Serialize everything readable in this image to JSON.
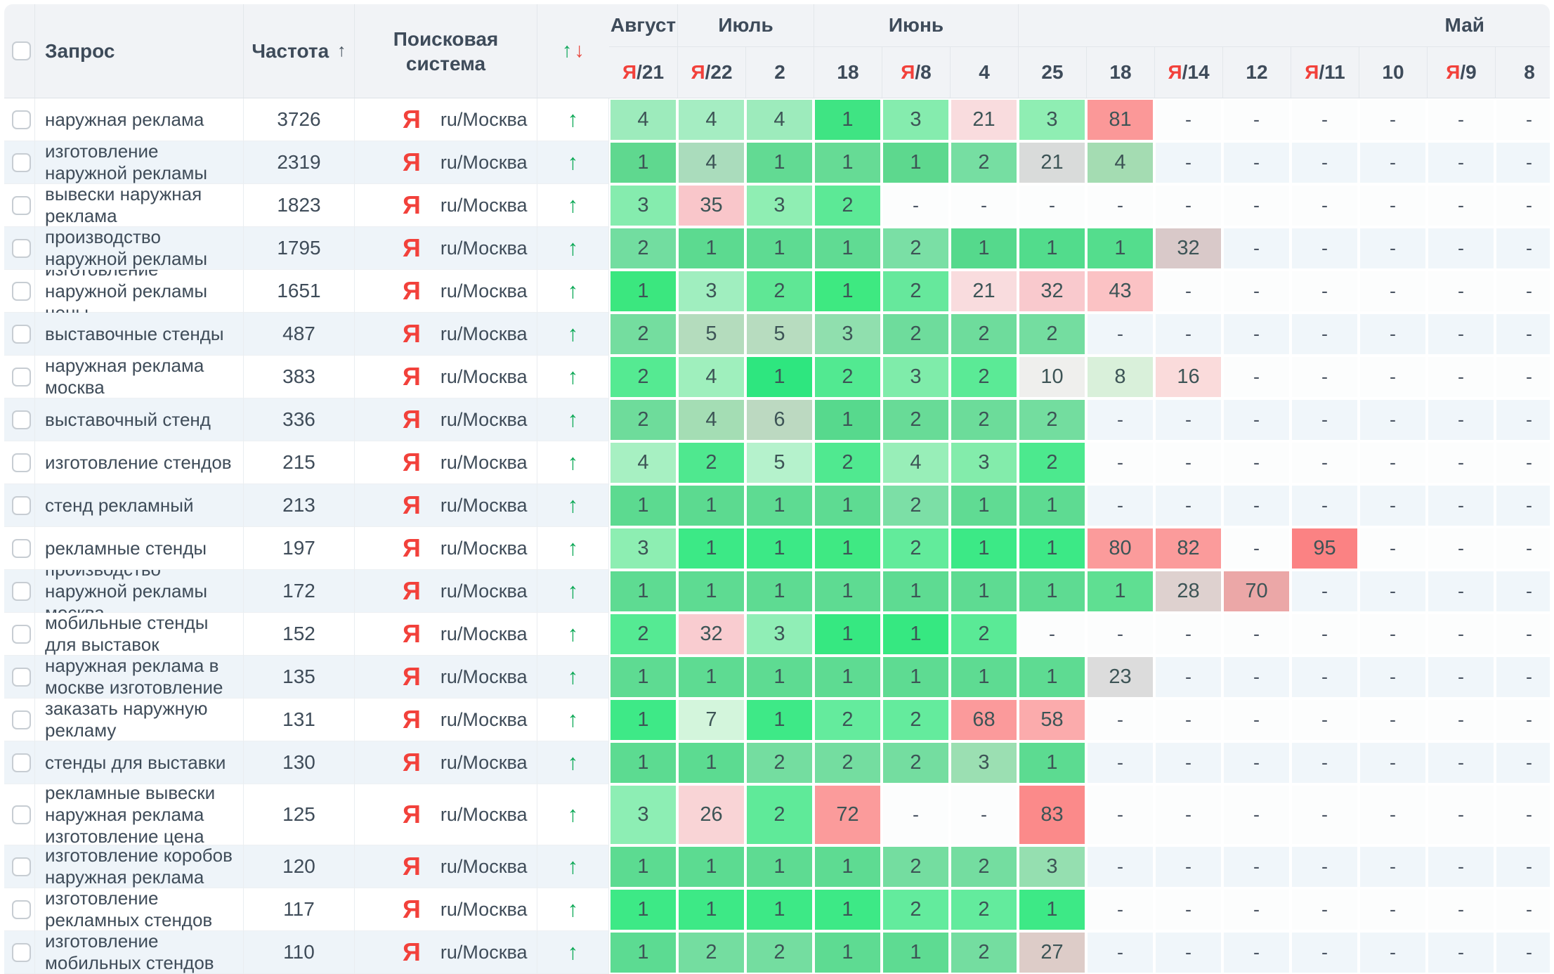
{
  "header": {
    "columns": {
      "query": "Запрос",
      "frequency": "Частота",
      "frequency_sort_icon": "↑",
      "engine_line1": "Поисковая",
      "engine_line2": "система",
      "trend_up_icon": "↑",
      "trend_down_icon": "↓"
    },
    "month_groups": [
      {
        "label": "Август",
        "span": 1
      },
      {
        "label": "Июль",
        "span": 2
      },
      {
        "label": "Июнь",
        "span": 3
      },
      {
        "label": "Май",
        "span": 8
      }
    ],
    "dates": [
      {
        "yandex": true,
        "day": "21"
      },
      {
        "yandex": true,
        "day": "22"
      },
      {
        "yandex": false,
        "day": "2"
      },
      {
        "yandex": false,
        "day": "18"
      },
      {
        "yandex": true,
        "day": "8"
      },
      {
        "yandex": false,
        "day": "4"
      },
      {
        "yandex": false,
        "day": "25"
      },
      {
        "yandex": false,
        "day": "18"
      },
      {
        "yandex": true,
        "day": "14"
      },
      {
        "yandex": false,
        "day": "12"
      },
      {
        "yandex": true,
        "day": "11"
      },
      {
        "yandex": false,
        "day": "10"
      },
      {
        "yandex": true,
        "day": "9"
      },
      {
        "yandex": false,
        "day": "8"
      }
    ]
  },
  "engine": {
    "icon": "Я",
    "label": "ru/Москва"
  },
  "trend_arrow": "↑",
  "dash": "-",
  "colors": {
    "accent_red": "#f2413b",
    "green_arrow": "#0ea957",
    "header_text": "#3e4b5a",
    "cell_text": "#3d5456",
    "stripe_row": "#eef4f9",
    "header_bg": "#f1f3f6"
  },
  "rows": [
    {
      "query": "наружная реклама",
      "frequency": "3726",
      "cells": [
        [
          "4",
          "#9debbc"
        ],
        [
          "4",
          "#a5edc2"
        ],
        [
          "4",
          "#9debbc"
        ],
        [
          "1",
          "#3fe483"
        ],
        [
          "3",
          "#85ecae"
        ],
        [
          "21",
          "#f9dcde"
        ],
        [
          "3",
          "#8feeb3"
        ],
        [
          "81",
          "#fb9898"
        ],
        [
          "-",
          ""
        ],
        [
          "-",
          ""
        ],
        [
          "-",
          ""
        ],
        [
          "-",
          ""
        ],
        [
          "-",
          ""
        ],
        [
          "-",
          ""
        ]
      ]
    },
    {
      "query": "изготовление наружной рекламы",
      "frequency": "2319",
      "cells": [
        [
          "1",
          "#5fd88f"
        ],
        [
          "4",
          "#aadcbc"
        ],
        [
          "1",
          "#62da93"
        ],
        [
          "1",
          "#66db95"
        ],
        [
          "1",
          "#5dd88e"
        ],
        [
          "2",
          "#76dea2"
        ],
        [
          "21",
          "#d9dbda"
        ],
        [
          "4",
          "#a4dcb2"
        ],
        [
          "-",
          ""
        ],
        [
          "-",
          ""
        ],
        [
          "-",
          ""
        ],
        [
          "-",
          ""
        ],
        [
          "-",
          ""
        ],
        [
          "-",
          ""
        ]
      ]
    },
    {
      "query": "вывески наружная реклама",
      "frequency": "1823",
      "cells": [
        [
          "3",
          "#85ecae"
        ],
        [
          "35",
          "#f9c6ca"
        ],
        [
          "3",
          "#8feeb3"
        ],
        [
          "2",
          "#5ce996"
        ],
        [
          "-",
          ""
        ],
        [
          "-",
          ""
        ],
        [
          "-",
          ""
        ],
        [
          "-",
          ""
        ],
        [
          "-",
          ""
        ],
        [
          "-",
          ""
        ],
        [
          "-",
          ""
        ],
        [
          "-",
          ""
        ],
        [
          "-",
          ""
        ],
        [
          "-",
          ""
        ]
      ]
    },
    {
      "query": "производство наружной рекламы",
      "frequency": "1795",
      "cells": [
        [
          "2",
          "#72dda0"
        ],
        [
          "1",
          "#5cda90"
        ],
        [
          "1",
          "#5edb92"
        ],
        [
          "1",
          "#60db93"
        ],
        [
          "2",
          "#7adfa5"
        ],
        [
          "1",
          "#55d98c"
        ],
        [
          "1",
          "#52dc8c"
        ],
        [
          "1",
          "#54dd8d"
        ],
        [
          "32",
          "#d9c9c9"
        ],
        [
          "-",
          ""
        ],
        [
          "-",
          ""
        ],
        [
          "-",
          ""
        ],
        [
          "-",
          ""
        ],
        [
          "-",
          ""
        ]
      ]
    },
    {
      "query": "изготовление наружной рекламы цены",
      "frequency": "1651",
      "cells": [
        [
          "1",
          "#3be77f"
        ],
        [
          "3",
          "#a0eebf"
        ],
        [
          "2",
          "#5fe795"
        ],
        [
          "1",
          "#3ee981"
        ],
        [
          "2",
          "#66e89c"
        ],
        [
          "21",
          "#f9dcde"
        ],
        [
          "32",
          "#f9c9cd"
        ],
        [
          "43",
          "#fbc2c4"
        ],
        [
          "-",
          ""
        ],
        [
          "-",
          ""
        ],
        [
          "-",
          ""
        ],
        [
          "-",
          ""
        ],
        [
          "-",
          ""
        ],
        [
          "-",
          ""
        ]
      ]
    },
    {
      "query": "выставочные стенды",
      "frequency": "487",
      "cells": [
        [
          "2",
          "#74dd9f"
        ],
        [
          "5",
          "#b4dcbd"
        ],
        [
          "5",
          "#b7dcbf"
        ],
        [
          "3",
          "#90dfae"
        ],
        [
          "2",
          "#6edc9c"
        ],
        [
          "2",
          "#6edc9c"
        ],
        [
          "2",
          "#74dda0"
        ],
        [
          "-",
          ""
        ],
        [
          "-",
          ""
        ],
        [
          "-",
          ""
        ],
        [
          "-",
          ""
        ],
        [
          "-",
          ""
        ],
        [
          "-",
          ""
        ],
        [
          "-",
          ""
        ]
      ]
    },
    {
      "query": "наружная реклама москва",
      "frequency": "383",
      "cells": [
        [
          "2",
          "#55ea92"
        ],
        [
          "4",
          "#9fefbd"
        ],
        [
          "1",
          "#2ee67f"
        ],
        [
          "2",
          "#52e991"
        ],
        [
          "3",
          "#7fecaa"
        ],
        [
          "2",
          "#5bea96"
        ],
        [
          "10",
          "#efefed"
        ],
        [
          "8",
          "#d9f0da"
        ],
        [
          "16",
          "#fadbdb"
        ],
        [
          "-",
          ""
        ],
        [
          "-",
          ""
        ],
        [
          "-",
          ""
        ],
        [
          "-",
          ""
        ],
        [
          "-",
          ""
        ]
      ]
    },
    {
      "query": "выставочный стенд",
      "frequency": "336",
      "cells": [
        [
          "2",
          "#6edc9b"
        ],
        [
          "4",
          "#a4ddb4"
        ],
        [
          "6",
          "#bcd9c1"
        ],
        [
          "1",
          "#57d98d"
        ],
        [
          "2",
          "#68db97"
        ],
        [
          "2",
          "#6cdc9a"
        ],
        [
          "2",
          "#73dd9f"
        ],
        [
          "-",
          ""
        ],
        [
          "-",
          ""
        ],
        [
          "-",
          ""
        ],
        [
          "-",
          ""
        ],
        [
          "-",
          ""
        ],
        [
          "-",
          ""
        ],
        [
          "-",
          ""
        ]
      ]
    },
    {
      "query": "изготовление стендов",
      "frequency": "215",
      "cells": [
        [
          "4",
          "#a7f0c2"
        ],
        [
          "2",
          "#4fe88f"
        ],
        [
          "5",
          "#b5f2cc"
        ],
        [
          "2",
          "#50e990"
        ],
        [
          "4",
          "#98eeb8"
        ],
        [
          "3",
          "#83ecab"
        ],
        [
          "2",
          "#4ce98e"
        ],
        [
          "-",
          ""
        ],
        [
          "-",
          ""
        ],
        [
          "-",
          ""
        ],
        [
          "-",
          ""
        ],
        [
          "-",
          ""
        ],
        [
          "-",
          ""
        ],
        [
          "-",
          ""
        ]
      ]
    },
    {
      "query": "стенд рекламный",
      "frequency": "213",
      "cells": [
        [
          "1",
          "#5cda90"
        ],
        [
          "1",
          "#5cda90"
        ],
        [
          "1",
          "#5edb92"
        ],
        [
          "1",
          "#5edb92"
        ],
        [
          "2",
          "#7cdfa6"
        ],
        [
          "1",
          "#60db93"
        ],
        [
          "1",
          "#5edb92"
        ],
        [
          "-",
          ""
        ],
        [
          "-",
          ""
        ],
        [
          "-",
          ""
        ],
        [
          "-",
          ""
        ],
        [
          "-",
          ""
        ],
        [
          "-",
          ""
        ],
        [
          "-",
          ""
        ]
      ]
    },
    {
      "query": "рекламные стенды",
      "frequency": "197",
      "cells": [
        [
          "3",
          "#8deeb2"
        ],
        [
          "1",
          "#3ce986"
        ],
        [
          "1",
          "#3ce986"
        ],
        [
          "1",
          "#3fe983"
        ],
        [
          "2",
          "#62eb9b"
        ],
        [
          "1",
          "#3ce986"
        ],
        [
          "1",
          "#3ce986"
        ],
        [
          "80",
          "#fb9b9b"
        ],
        [
          "82",
          "#fb9b9b"
        ],
        [
          "-",
          ""
        ],
        [
          "95",
          "#fb8283"
        ],
        [
          "-",
          ""
        ],
        [
          "-",
          ""
        ],
        [
          "-",
          ""
        ]
      ]
    },
    {
      "query": "производство наружной рекламы москва",
      "frequency": "172",
      "cells": [
        [
          "1",
          "#5edb92"
        ],
        [
          "1",
          "#5edb92"
        ],
        [
          "1",
          "#5edb92"
        ],
        [
          "1",
          "#5edb92"
        ],
        [
          "1",
          "#5edb92"
        ],
        [
          "1",
          "#5edb92"
        ],
        [
          "1",
          "#5edb92"
        ],
        [
          "1",
          "#5fdf92"
        ],
        [
          "28",
          "#ded1cf"
        ],
        [
          "70",
          "#eba7a7"
        ],
        [
          "-",
          ""
        ],
        [
          "-",
          ""
        ],
        [
          "-",
          ""
        ],
        [
          "-",
          ""
        ]
      ]
    },
    {
      "query": "мобильные стенды для выставок",
      "frequency": "152",
      "cells": [
        [
          "2",
          "#55ea93"
        ],
        [
          "32",
          "#f9ccd0"
        ],
        [
          "3",
          "#90eeb6"
        ],
        [
          "1",
          "#36e881"
        ],
        [
          "1",
          "#36e881"
        ],
        [
          "2",
          "#5aea96"
        ],
        [
          "-",
          ""
        ],
        [
          "-",
          ""
        ],
        [
          "-",
          ""
        ],
        [
          "-",
          ""
        ],
        [
          "-",
          ""
        ],
        [
          "-",
          ""
        ],
        [
          "-",
          ""
        ],
        [
          "-",
          ""
        ]
      ]
    },
    {
      "query": "наружная реклама в москве изготовление",
      "frequency": "135",
      "cells": [
        [
          "1",
          "#5edb92"
        ],
        [
          "1",
          "#5edb92"
        ],
        [
          "1",
          "#5edb92"
        ],
        [
          "1",
          "#5edb92"
        ],
        [
          "1",
          "#5edb92"
        ],
        [
          "1",
          "#5edb92"
        ],
        [
          "1",
          "#5edb92"
        ],
        [
          "23",
          "#dcdcdc"
        ],
        [
          "-",
          ""
        ],
        [
          "-",
          ""
        ],
        [
          "-",
          ""
        ],
        [
          "-",
          ""
        ],
        [
          "-",
          ""
        ],
        [
          "-",
          ""
        ]
      ]
    },
    {
      "query": "заказать наружную рекламу",
      "frequency": "131",
      "cells": [
        [
          "1",
          "#3ee987"
        ],
        [
          "7",
          "#d3f5dc"
        ],
        [
          "1",
          "#3ee987"
        ],
        [
          "2",
          "#64eb9d"
        ],
        [
          "2",
          "#64eb9d"
        ],
        [
          "68",
          "#fb9a9b"
        ],
        [
          "58",
          "#fbabac"
        ],
        [
          "-",
          ""
        ],
        [
          "-",
          ""
        ],
        [
          "-",
          ""
        ],
        [
          "-",
          ""
        ],
        [
          "-",
          ""
        ],
        [
          "-",
          ""
        ],
        [
          "-",
          ""
        ]
      ]
    },
    {
      "query": "стенды для выставки",
      "frequency": "130",
      "cells": [
        [
          "1",
          "#5cdb91"
        ],
        [
          "1",
          "#5cdb91"
        ],
        [
          "2",
          "#74dda0"
        ],
        [
          "2",
          "#74dda0"
        ],
        [
          "2",
          "#74dda0"
        ],
        [
          "3",
          "#9bdfb2"
        ],
        [
          "1",
          "#5cdb91"
        ],
        [
          "-",
          ""
        ],
        [
          "-",
          ""
        ],
        [
          "-",
          ""
        ],
        [
          "-",
          ""
        ],
        [
          "-",
          ""
        ],
        [
          "-",
          ""
        ],
        [
          "-",
          ""
        ]
      ]
    },
    {
      "query": "рекламные вывески наружная реклама изготовление цена",
      "frequency": "125",
      "tall": true,
      "cells": [
        [
          "3",
          "#8deeb4"
        ],
        [
          "26",
          "#f9d4d6"
        ],
        [
          "2",
          "#5fea99"
        ],
        [
          "72",
          "#fb9b9b"
        ],
        [
          "-",
          ""
        ],
        [
          "-",
          ""
        ],
        [
          "83",
          "#fb8a8a"
        ],
        [
          "-",
          ""
        ],
        [
          "-",
          ""
        ],
        [
          "-",
          ""
        ],
        [
          "-",
          ""
        ],
        [
          "-",
          ""
        ],
        [
          "-",
          ""
        ],
        [
          "-",
          ""
        ]
      ]
    },
    {
      "query": "изготовление коробов наружная реклама",
      "frequency": "120",
      "cells": [
        [
          "1",
          "#5cdb91"
        ],
        [
          "1",
          "#5cdb91"
        ],
        [
          "1",
          "#5edb92"
        ],
        [
          "1",
          "#5edb92"
        ],
        [
          "2",
          "#74dda0"
        ],
        [
          "2",
          "#74dda0"
        ],
        [
          "3",
          "#95dfb0"
        ],
        [
          "-",
          ""
        ],
        [
          "-",
          ""
        ],
        [
          "-",
          ""
        ],
        [
          "-",
          ""
        ],
        [
          "-",
          ""
        ],
        [
          "-",
          ""
        ],
        [
          "-",
          ""
        ]
      ]
    },
    {
      "query": "изготовление рекламных стендов",
      "frequency": "117",
      "cells": [
        [
          "1",
          "#3de986"
        ],
        [
          "1",
          "#3de986"
        ],
        [
          "1",
          "#3de986"
        ],
        [
          "1",
          "#3de986"
        ],
        [
          "2",
          "#63eb9d"
        ],
        [
          "2",
          "#63eb9d"
        ],
        [
          "1",
          "#3de986"
        ],
        [
          "-",
          ""
        ],
        [
          "-",
          ""
        ],
        [
          "-",
          ""
        ],
        [
          "-",
          ""
        ],
        [
          "-",
          ""
        ],
        [
          "-",
          ""
        ],
        [
          "-",
          ""
        ]
      ]
    },
    {
      "query": "изготовление мобильных стендов",
      "frequency": "110",
      "cells": [
        [
          "1",
          "#5cdb92"
        ],
        [
          "2",
          "#74dda0"
        ],
        [
          "2",
          "#74dda0"
        ],
        [
          "1",
          "#5edb92"
        ],
        [
          "1",
          "#5edb92"
        ],
        [
          "2",
          "#74dda0"
        ],
        [
          "27",
          "#ddccc8"
        ],
        [
          "-",
          ""
        ],
        [
          "-",
          ""
        ],
        [
          "-",
          ""
        ],
        [
          "-",
          ""
        ],
        [
          "-",
          ""
        ],
        [
          "-",
          ""
        ],
        [
          "-",
          ""
        ]
      ]
    }
  ]
}
